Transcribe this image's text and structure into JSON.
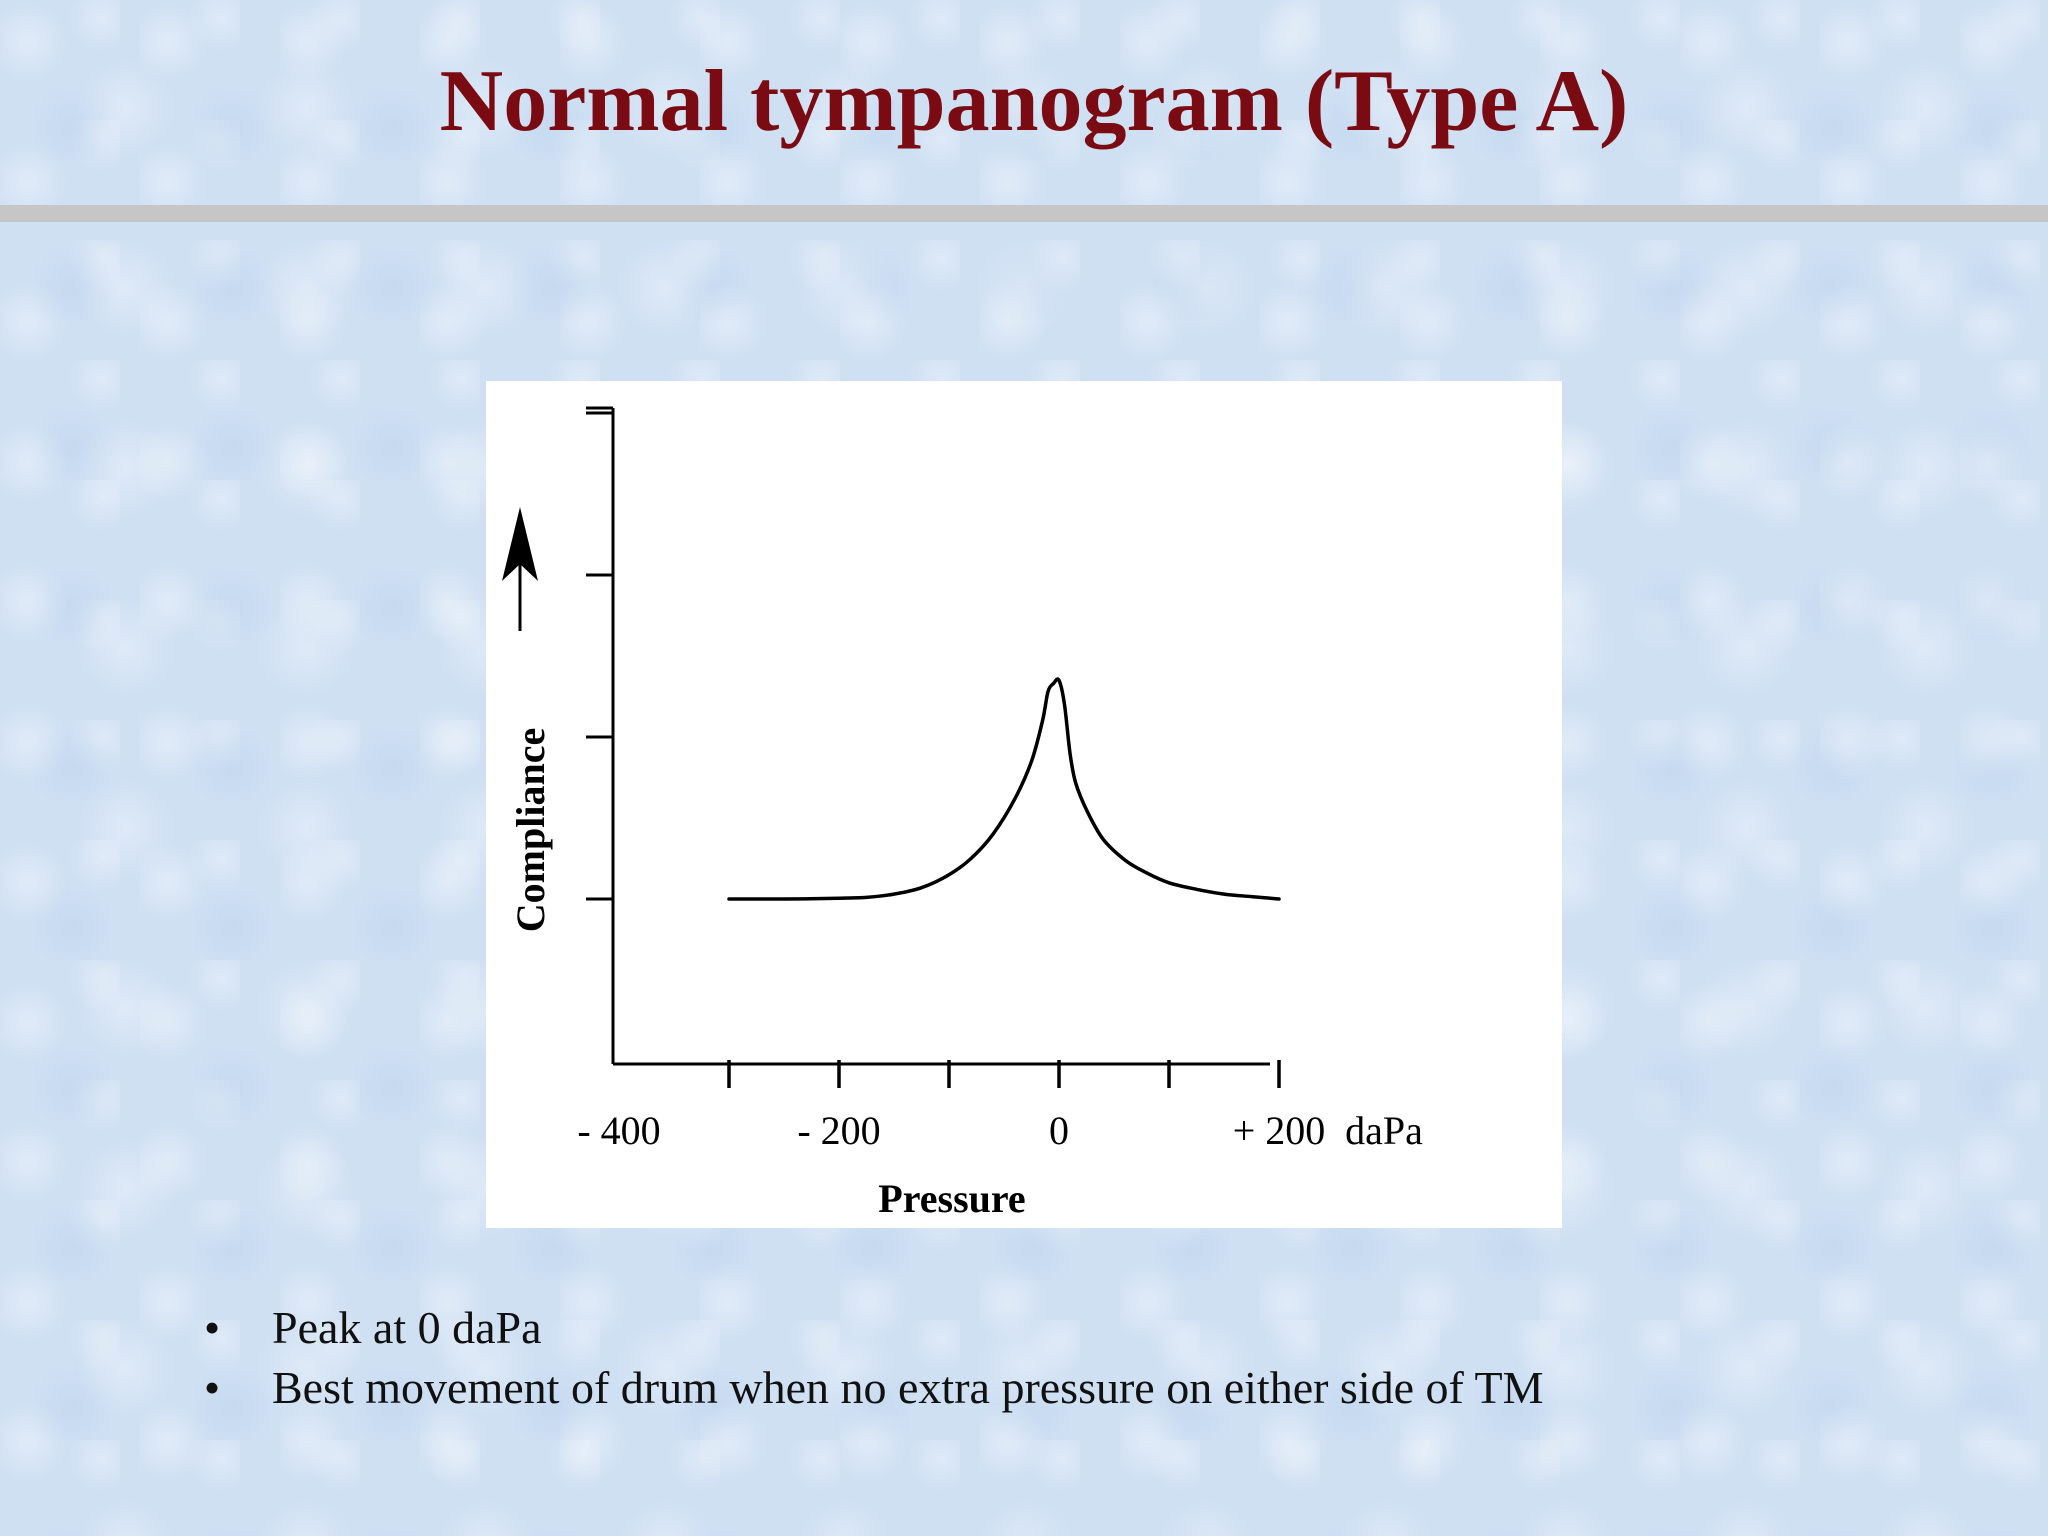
{
  "slide": {
    "title": "Normal tympanogram (Type A)",
    "title_color": "#7b0b12",
    "bullets": [
      "Peak at 0 daPa",
      "Best movement of drum when no extra pressure on either side of TM"
    ]
  },
  "chart_data": {
    "type": "line",
    "title": "",
    "xlabel": "Pressure",
    "ylabel": "Compliance",
    "x_unit": "daPa",
    "xlim": [
      -400,
      200
    ],
    "x_ticks": [
      -300,
      -200,
      -100,
      0,
      100,
      200
    ],
    "x_tick_labels": [
      {
        "value": -400,
        "label": "- 400"
      },
      {
        "value": -200,
        "label": "- 200"
      },
      {
        "value": 0,
        "label": "0"
      },
      {
        "value": 200,
        "label": "+ 200"
      }
    ],
    "y_ticks": [
      0,
      1,
      2,
      3
    ],
    "ylim": [
      -1,
      3
    ],
    "grid": false,
    "series": [
      {
        "x": [
          -300,
          -250,
          -200,
          -175,
          -150,
          -125,
          -100,
          -80,
          -60,
          -40,
          -25,
          -15,
          -10,
          -5,
          0,
          5,
          10,
          15,
          25,
          40,
          60,
          80,
          100,
          125,
          150,
          175,
          200
        ],
        "y": [
          0,
          0,
          0.005,
          0.01,
          0.03,
          0.07,
          0.15,
          0.25,
          0.4,
          0.62,
          0.85,
          1.1,
          1.28,
          1.33,
          1.35,
          1.2,
          0.9,
          0.72,
          0.55,
          0.37,
          0.24,
          0.16,
          0.1,
          0.06,
          0.03,
          0.015,
          0
        ]
      }
    ]
  }
}
